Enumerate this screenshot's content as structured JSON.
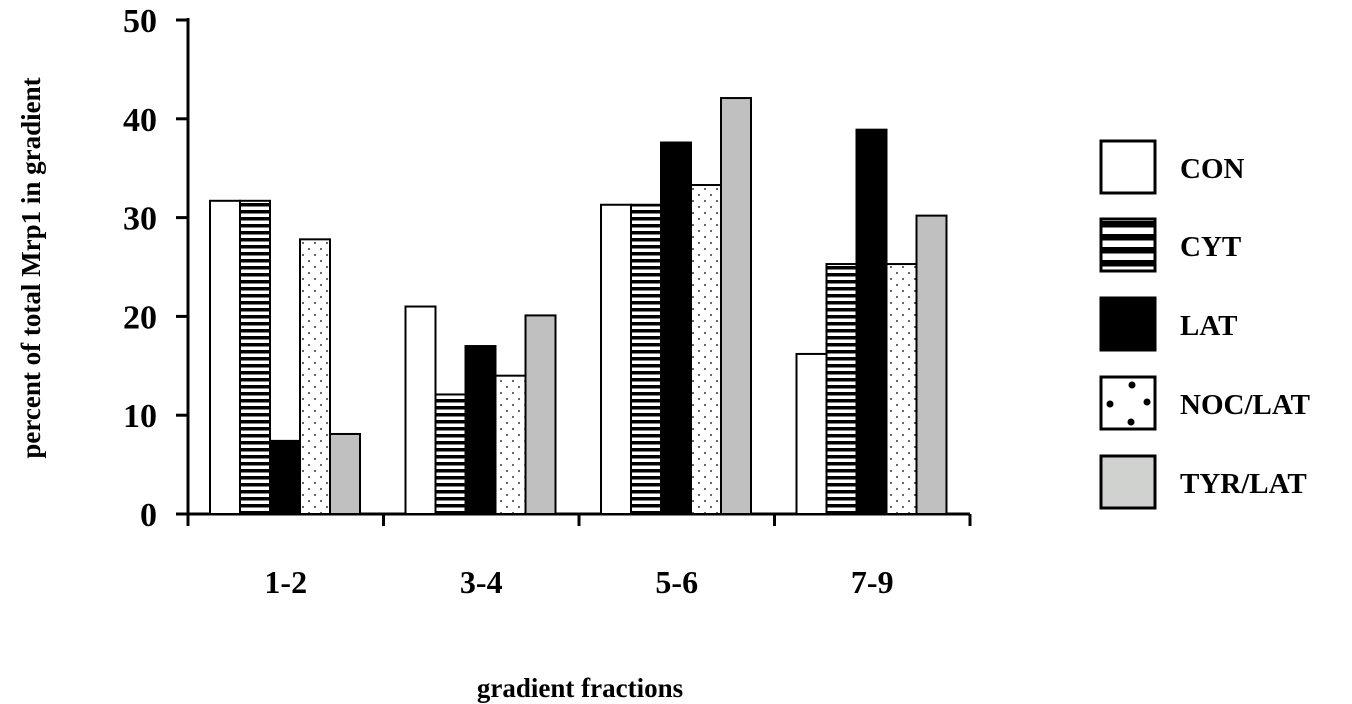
{
  "chart_data": {
    "type": "bar",
    "title": "",
    "xlabel": "gradient fractions",
    "ylabel": "percent of total Mrp1 in gradient",
    "ylim": [
      0,
      50
    ],
    "yticks": [
      "0",
      "10",
      "20",
      "30",
      "40",
      "50"
    ],
    "categories": [
      "1-2",
      "3-4",
      "5-6",
      "7-9"
    ],
    "grid": false,
    "legend_position": "right",
    "series": [
      {
        "name": "CON",
        "values": [
          31.7,
          21.0,
          31.3,
          16.2
        ],
        "pattern": "white"
      },
      {
        "name": "CYT",
        "values": [
          31.7,
          12.1,
          31.3,
          25.3
        ],
        "pattern": "horizontal-stripes"
      },
      {
        "name": "LAT",
        "values": [
          7.4,
          17.0,
          37.6,
          38.9
        ],
        "pattern": "solid-black"
      },
      {
        "name": "NOC/LAT",
        "values": [
          27.8,
          14.0,
          33.3,
          25.3
        ],
        "pattern": "dots"
      },
      {
        "name": "TYR/LAT",
        "values": [
          8.1,
          20.1,
          42.1,
          30.2
        ],
        "pattern": "gray"
      }
    ],
    "colors": {
      "stroke": "#000000",
      "gray_fill": "#c0c0c0",
      "legend_gray_fill": "#cfd2cf"
    }
  }
}
